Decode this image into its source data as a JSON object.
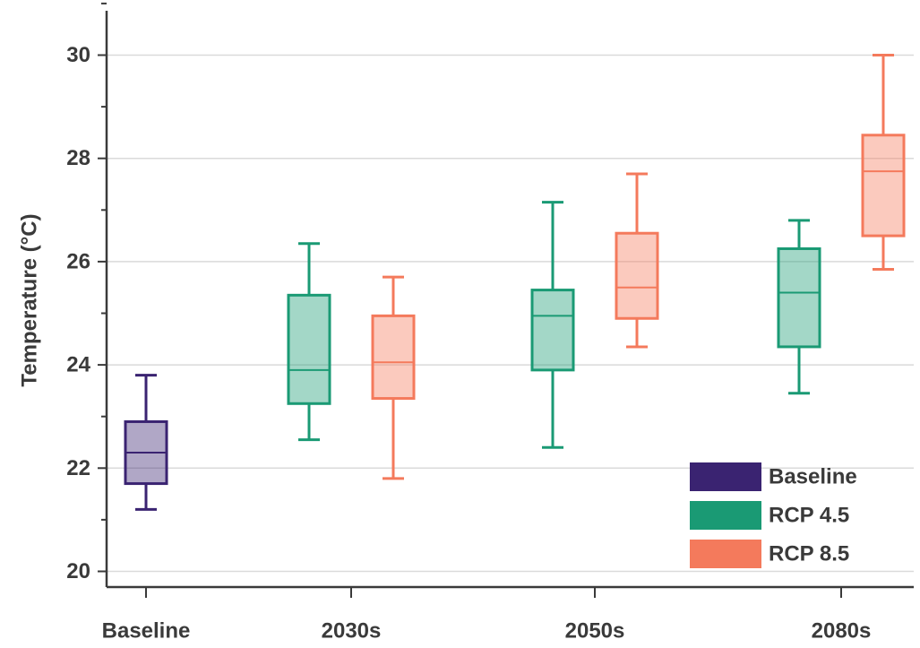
{
  "chart_data": {
    "type": "box",
    "title": "",
    "xlabel": "",
    "ylabel": "Temperature (°C)",
    "ylim": [
      19.6,
      31.0
    ],
    "yticks": [
      20,
      22,
      24,
      26,
      28,
      30
    ],
    "ytick_labels": [
      "20",
      "22",
      "24",
      "26",
      "28",
      "30"
    ],
    "categories": [
      "Baseline",
      "2030s",
      "2050s",
      "2080s"
    ],
    "grid": "horizontal",
    "legend": {
      "placement": "bottom-right",
      "entries": [
        {
          "label": "Baseline",
          "color": "#3a2371"
        },
        {
          "label": "RCP 4.5",
          "color": "#1a9a74"
        },
        {
          "label": "RCP 8.5",
          "color": "#f47a5c"
        }
      ]
    },
    "series": [
      {
        "name": "Baseline",
        "color": "#3a2371",
        "boxes": [
          {
            "category": "Baseline",
            "min": 21.2,
            "q1": 21.7,
            "median": 22.3,
            "q3": 22.9,
            "max": 23.8
          }
        ]
      },
      {
        "name": "RCP 4.5",
        "color": "#1a9a74",
        "boxes": [
          {
            "category": "2030s",
            "min": 22.55,
            "q1": 23.25,
            "median": 23.9,
            "q3": 25.35,
            "max": 26.35
          },
          {
            "category": "2050s",
            "min": 22.4,
            "q1": 23.9,
            "median": 24.95,
            "q3": 25.45,
            "max": 27.15
          },
          {
            "category": "2080s",
            "min": 23.45,
            "q1": 24.35,
            "median": 25.4,
            "q3": 26.25,
            "max": 26.8
          }
        ]
      },
      {
        "name": "RCP 8.5",
        "color": "#f47a5c",
        "boxes": [
          {
            "category": "2030s",
            "min": 21.8,
            "q1": 23.35,
            "median": 24.05,
            "q3": 24.95,
            "max": 25.7
          },
          {
            "category": "2050s",
            "min": 24.35,
            "q1": 24.9,
            "median": 25.5,
            "q3": 26.55,
            "max": 27.7
          },
          {
            "category": "2080s",
            "min": 25.85,
            "q1": 26.5,
            "median": 27.75,
            "q3": 28.45,
            "max": 30.0
          }
        ]
      }
    ]
  }
}
